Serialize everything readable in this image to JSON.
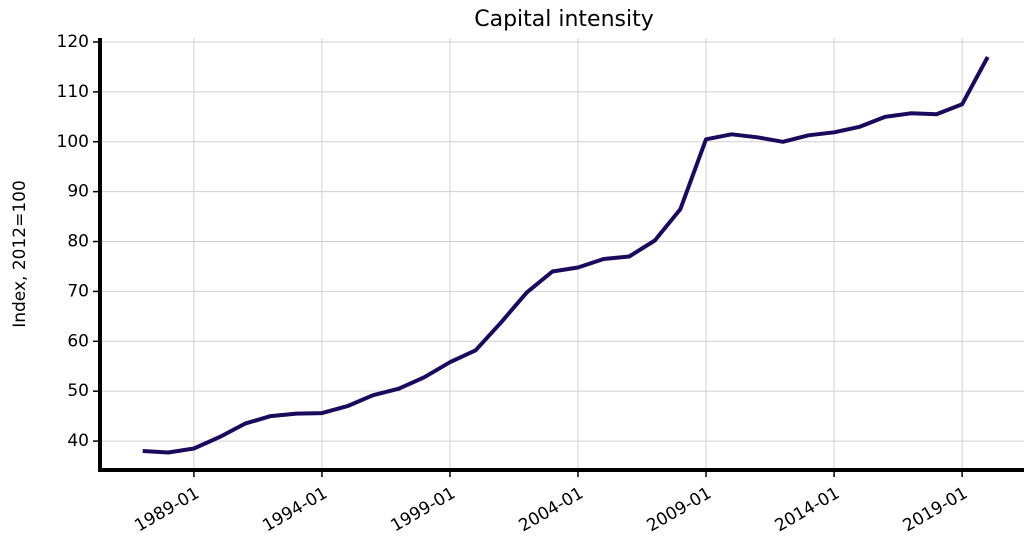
{
  "chart_data": {
    "type": "line",
    "title": "Capital intensity",
    "y_label": "Index, 2012=100",
    "x": [
      "1987-01",
      "1988-01",
      "1989-01",
      "1990-01",
      "1991-01",
      "1992-01",
      "1993-01",
      "1994-01",
      "1995-01",
      "1996-01",
      "1997-01",
      "1998-01",
      "1999-01",
      "2000-01",
      "2001-01",
      "2002-01",
      "2003-01",
      "2004-01",
      "2005-01",
      "2006-01",
      "2007-01",
      "2008-01",
      "2009-01",
      "2010-01",
      "2011-01",
      "2012-01",
      "2013-01",
      "2014-01",
      "2015-01",
      "2016-01",
      "2017-01",
      "2018-01",
      "2019-01",
      "2020-01"
    ],
    "series": [
      {
        "name": "Capital intensity",
        "color": "#1a0a5c",
        "values": [
          38.0,
          37.7,
          38.5,
          40.8,
          43.5,
          45.0,
          45.5,
          45.6,
          47.0,
          49.2,
          50.5,
          52.8,
          55.8,
          58.2,
          63.8,
          69.8,
          74.0,
          74.8,
          76.5,
          77.0,
          80.2,
          86.5,
          100.5,
          101.5,
          100.9,
          100.0,
          101.3,
          101.9,
          103.0,
          105.0,
          105.7,
          105.5,
          107.5,
          117.0
        ]
      }
    ],
    "xlim": [
      "1985-05",
      "2021-06"
    ],
    "xticks": [
      "1989-01",
      "1994-01",
      "1999-01",
      "2004-01",
      "2009-01",
      "2014-01",
      "2019-01"
    ],
    "ylim": [
      34.2,
      120.8
    ],
    "yticks": [
      40,
      50,
      60,
      70,
      80,
      90,
      100,
      110,
      120
    ],
    "grid": true
  }
}
